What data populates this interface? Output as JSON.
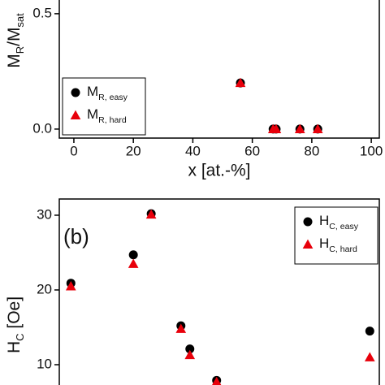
{
  "chart_data": [
    {
      "type": "scatter",
      "ylabel": [
        {
          "text": "M"
        },
        {
          "text": "R",
          "sub": true
        },
        {
          "text": "/M"
        },
        {
          "text": "sat",
          "sub": true
        }
      ],
      "xlabel": "x [at.-%]",
      "xlim": [
        -4.9,
        102.7
      ],
      "xticks": [
        0,
        20,
        40,
        60,
        80,
        100
      ],
      "ylim": [
        -0.039,
        0.577
      ],
      "yticks": [
        {
          "value": 0,
          "label": "0.0"
        },
        0.5
      ],
      "legend": "lower left",
      "series": [
        {
          "name": [
            {
              "text": "M"
            },
            {
              "text": "R, easy",
              "sub": true
            }
          ],
          "marker": "circle",
          "color": "#000000",
          "x": [
            56,
            67,
            68,
            76,
            82
          ],
          "values": [
            0.2,
            0,
            0,
            0,
            0
          ]
        },
        {
          "name": [
            {
              "text": "M"
            },
            {
              "text": "R, hard",
              "sub": true
            }
          ],
          "marker": "triangle",
          "color": "#e8000b",
          "x": [
            56,
            67,
            68,
            76,
            82
          ],
          "values": [
            0.2,
            0,
            0,
            0,
            0
          ]
        }
      ]
    },
    {
      "type": "scatter",
      "panel_label": "(b)",
      "ylabel": [
        {
          "text": "H"
        },
        {
          "text": "C",
          "sub": true
        },
        {
          "text": " [Oe]"
        }
      ],
      "xlim": [
        -4.9,
        102.7
      ],
      "ylim": [
        6.63,
        32.17
      ],
      "yticks": [
        10,
        20,
        30
      ],
      "legend": "upper right",
      "series": [
        {
          "name": [
            {
              "text": "H"
            },
            {
              "text": "C, easy",
              "sub": true
            }
          ],
          "marker": "circle",
          "color": "#000000",
          "x": [
            -1,
            20,
            26,
            36,
            39,
            48,
            99.5
          ],
          "values": [
            20.9,
            24.7,
            30.2,
            15.2,
            12.1,
            7.9,
            14.5
          ]
        },
        {
          "name": [
            {
              "text": "H"
            },
            {
              "text": "C, hard",
              "sub": true
            }
          ],
          "marker": "triangle",
          "color": "#e8000b",
          "x": [
            -1,
            20,
            26,
            36,
            39,
            48,
            99.5
          ],
          "values": [
            20.5,
            23.5,
            30.1,
            14.8,
            11.3,
            7.7,
            11.0
          ]
        }
      ]
    }
  ]
}
